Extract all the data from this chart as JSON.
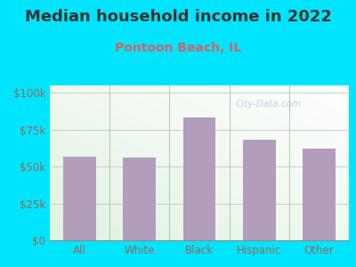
{
  "title": "Median household income in 2022",
  "subtitle": "Pontoon Beach, IL",
  "categories": [
    "All",
    "White",
    "Black",
    "Hispanic",
    "Other"
  ],
  "values": [
    57000,
    56000,
    83000,
    68000,
    62000
  ],
  "bar_color": "#b39dbd",
  "title_fontsize": 13,
  "title_color": "#333333",
  "subtitle_fontsize": 10,
  "subtitle_color": "#cc6666",
  "bg_color": "#00e5ff",
  "plot_bg_top_right": "#e8f0e8",
  "plot_bg_bottom_left": "#d8eed8",
  "tick_label_color": "#996655",
  "yticks": [
    0,
    25000,
    50000,
    75000,
    100000
  ],
  "ylim": [
    0,
    105000
  ],
  "watermark": "City-Data.com"
}
